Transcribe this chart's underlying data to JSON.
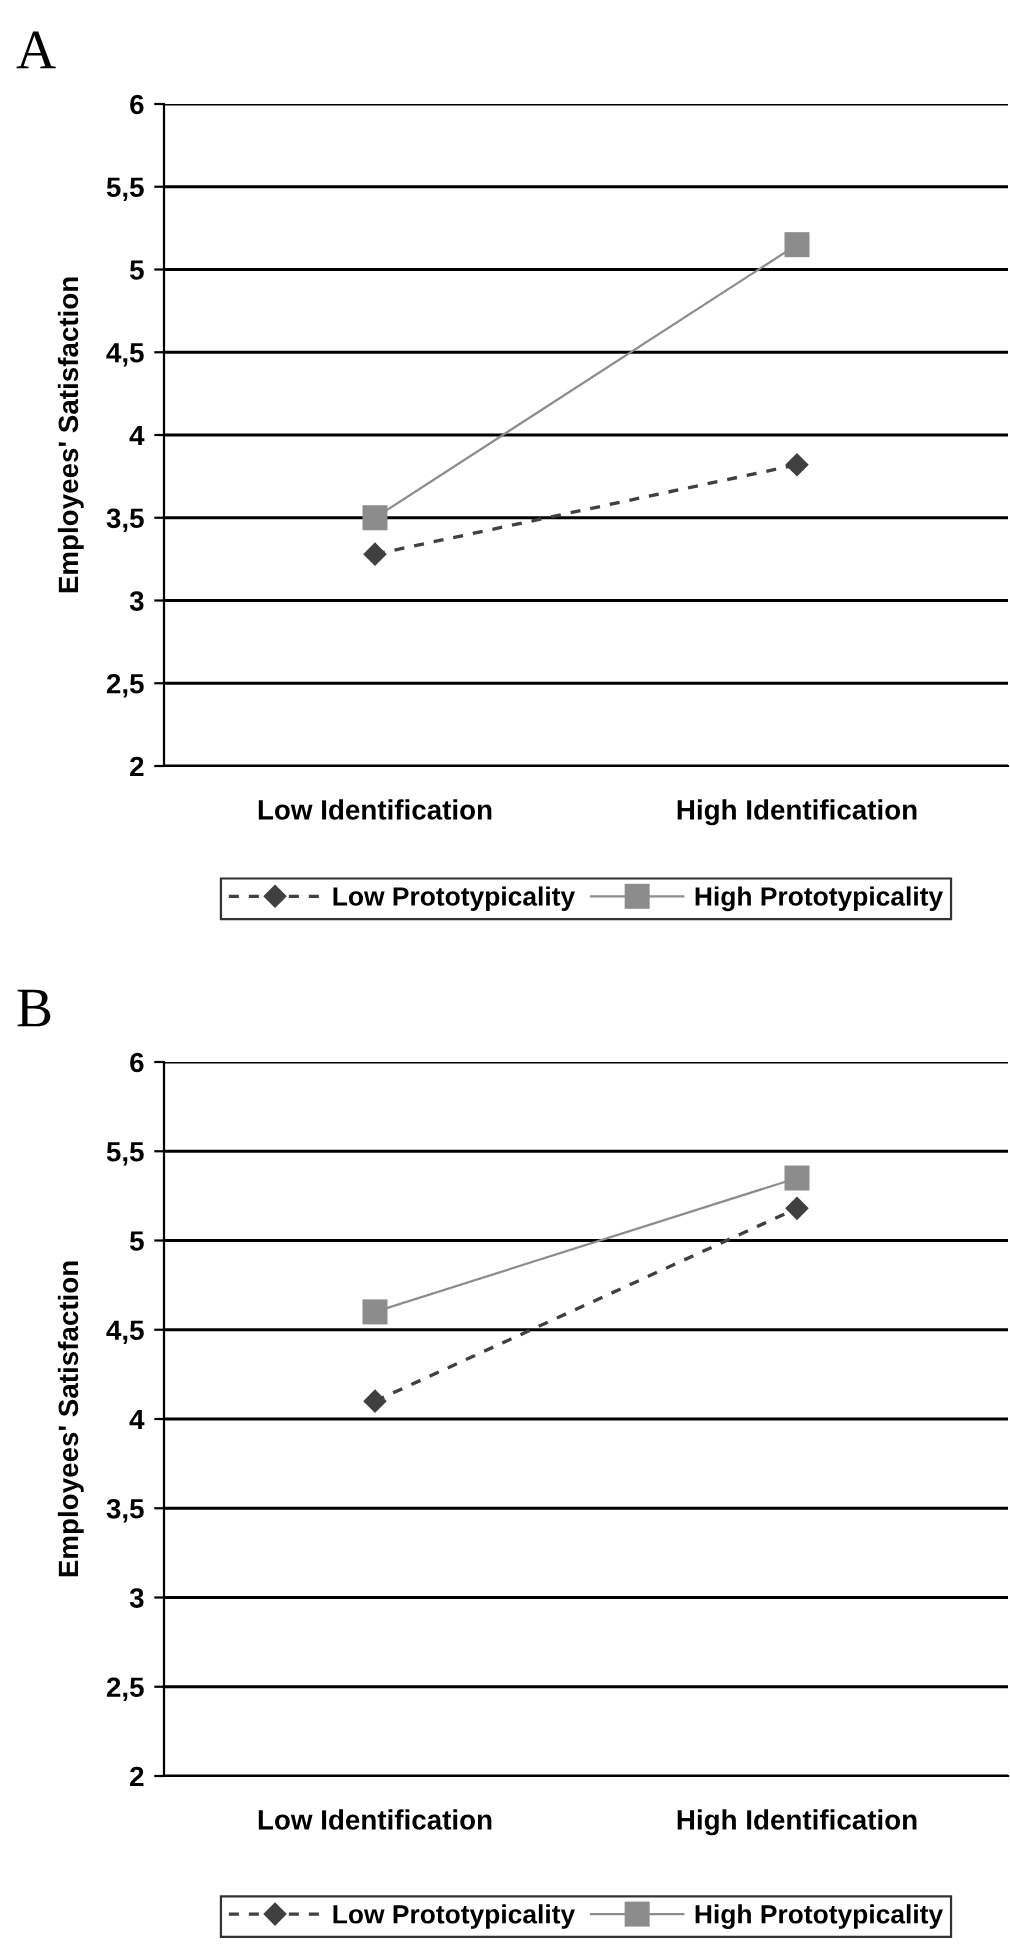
{
  "chart_data": [
    {
      "type": "line",
      "title": "A",
      "ylabel": "Employees' Satisfaction",
      "categories": [
        "Low Identification",
        "High Identification"
      ],
      "series": [
        {
          "name": "Low Prototypicality",
          "color": "#404040",
          "values": [
            3.28,
            3.82
          ],
          "marker": "diamond",
          "line_style": "dashed"
        },
        {
          "name": "High Prototypicality",
          "color": "#8c8c8c",
          "values": [
            3.5,
            5.15
          ],
          "marker": "square",
          "line_style": "solid"
        }
      ],
      "ylim": [
        2,
        6
      ],
      "yticks": [
        2,
        {
          "value": 2.5,
          "label": "2,5"
        },
        3,
        {
          "value": 3.5,
          "label": "3,5"
        },
        4,
        {
          "value": 4.5,
          "label": "4,5"
        },
        5,
        {
          "value": 5.5,
          "label": "5,5"
        },
        6
      ],
      "grid": "y",
      "legend": "bottom"
    },
    {
      "type": "line",
      "title": "B",
      "ylabel": "Employees' Satisfaction",
      "categories": [
        "Low Identification",
        "High Identification"
      ],
      "series": [
        {
          "name": "Low Prototypicality",
          "color": "#404040",
          "values": [
            4.1,
            5.18
          ],
          "marker": "diamond",
          "line_style": "dashed"
        },
        {
          "name": "High Prototypicality",
          "color": "#8c8c8c",
          "values": [
            4.6,
            5.35
          ],
          "marker": "square",
          "line_style": "solid"
        }
      ],
      "ylim": [
        2,
        6
      ],
      "yticks": [
        2,
        {
          "value": 2.5,
          "label": "2,5"
        },
        3,
        {
          "value": 3.5,
          "label": "3,5"
        },
        4,
        {
          "value": 4.5,
          "label": "4,5"
        },
        5,
        {
          "value": 5.5,
          "label": "5,5"
        },
        6
      ],
      "grid": "y",
      "legend": "bottom"
    }
  ]
}
